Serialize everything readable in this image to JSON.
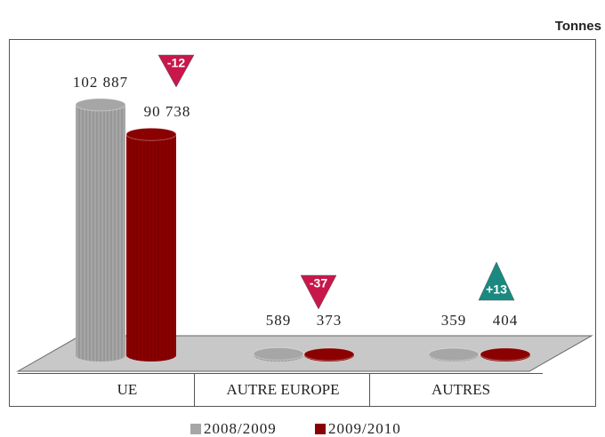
{
  "chart_data": {
    "type": "cylinder",
    "unit": "Tonnes",
    "categories": [
      "UE",
      "AUTRE EUROPE",
      "AUTRES"
    ],
    "series": [
      {
        "name": "2008/2009",
        "color": "#a6a6a6",
        "values": [
          102887,
          589,
          359
        ],
        "value_labels": [
          "102 887",
          "589",
          "359"
        ]
      },
      {
        "name": "2009/2010",
        "color": "#8b0000",
        "values": [
          90738,
          373,
          404
        ],
        "value_labels": [
          "90 738",
          "373",
          "404"
        ]
      }
    ],
    "annotations": [
      {
        "label": "-12",
        "shape": "down",
        "color": "#c8174b"
      },
      {
        "label": "-37",
        "shape": "down",
        "color": "#c8174b"
      },
      {
        "label": "+13",
        "shape": "up",
        "color": "#1a8a80"
      }
    ],
    "ylim": [
      0,
      120000
    ]
  }
}
